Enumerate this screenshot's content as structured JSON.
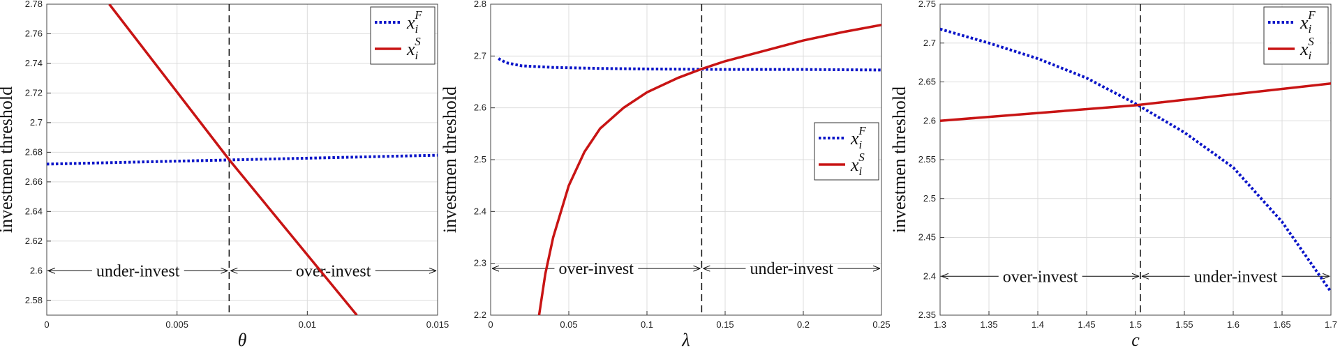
{
  "chart_data": [
    {
      "type": "line",
      "xlabel": "θ",
      "ylabel": "investmen threshold",
      "xlim": [
        0,
        0.015
      ],
      "xticks": [
        0,
        0.005,
        0.01,
        0.015
      ],
      "ylim": [
        2.57,
        2.78
      ],
      "yticks": [
        2.58,
        2.6,
        2.62,
        2.64,
        2.66,
        2.68,
        2.7,
        2.72,
        2.74,
        2.76,
        2.78
      ],
      "grid": true,
      "legend": "upper right",
      "vline": 0.007,
      "series": [
        {
          "name": "x",
          "subscript": "i",
          "superscript": "F",
          "color": "#0a14c8",
          "style": "dotted",
          "x": [
            0,
            0.015
          ],
          "values": [
            2.672,
            2.678
          ]
        },
        {
          "name": "x",
          "subscript": "i",
          "superscript": "S",
          "color": "#c81414",
          "style": "solid",
          "x": [
            0.0024,
            0.007,
            0.0119
          ],
          "values": [
            2.78,
            2.675,
            2.57
          ]
        }
      ],
      "annotation_y": 2.6,
      "annotations": [
        {
          "text": "under-invest",
          "side": "left"
        },
        {
          "text": "over-invest",
          "side": "right"
        }
      ]
    },
    {
      "type": "line",
      "xlabel": "λ",
      "ylabel": "investmen threshold",
      "xlim": [
        0,
        0.25
      ],
      "xticks": [
        0,
        0.05,
        0.1,
        0.15,
        0.2,
        0.25
      ],
      "ylim": [
        2.2,
        2.8
      ],
      "yticks": [
        2.2,
        2.3,
        2.4,
        2.5,
        2.6,
        2.7,
        2.8
      ],
      "grid": true,
      "legend": "right",
      "vline": 0.135,
      "series": [
        {
          "name": "x",
          "subscript": "i",
          "superscript": "F",
          "color": "#0a14c8",
          "style": "dotted",
          "x": [
            0.005,
            0.01,
            0.02,
            0.04,
            0.07,
            0.1,
            0.15,
            0.2,
            0.25
          ],
          "values": [
            2.695,
            2.687,
            2.681,
            2.678,
            2.676,
            2.675,
            2.674,
            2.674,
            2.673
          ]
        },
        {
          "name": "x",
          "subscript": "i",
          "superscript": "S",
          "color": "#c81414",
          "style": "solid",
          "x": [
            0.031,
            0.035,
            0.04,
            0.05,
            0.06,
            0.07,
            0.085,
            0.1,
            0.12,
            0.135,
            0.15,
            0.175,
            0.2,
            0.225,
            0.25
          ],
          "values": [
            2.2,
            2.28,
            2.35,
            2.45,
            2.515,
            2.56,
            2.6,
            2.63,
            2.658,
            2.675,
            2.69,
            2.71,
            2.73,
            2.746,
            2.76
          ]
        }
      ],
      "annotation_y": 2.29,
      "annotations": [
        {
          "text": "over-invest",
          "side": "left"
        },
        {
          "text": "under-invest",
          "side": "right"
        }
      ]
    },
    {
      "type": "line",
      "xlabel": "c",
      "ylabel": "investmen threshold",
      "xlim": [
        1.3,
        1.7
      ],
      "xticks": [
        1.3,
        1.35,
        1.4,
        1.45,
        1.5,
        1.55,
        1.6,
        1.65,
        1.7
      ],
      "ylim": [
        2.35,
        2.75
      ],
      "yticks": [
        2.35,
        2.4,
        2.45,
        2.5,
        2.55,
        2.6,
        2.65,
        2.7,
        2.75
      ],
      "grid": true,
      "legend": "upper right",
      "vline": 1.505,
      "series": [
        {
          "name": "x",
          "subscript": "i",
          "superscript": "F",
          "color": "#0a14c8",
          "style": "dotted",
          "x": [
            1.3,
            1.35,
            1.4,
            1.45,
            1.5,
            1.55,
            1.6,
            1.65,
            1.7
          ],
          "values": [
            2.718,
            2.7,
            2.68,
            2.655,
            2.622,
            2.585,
            2.54,
            2.47,
            2.38
          ]
        },
        {
          "name": "x",
          "subscript": "i",
          "superscript": "S",
          "color": "#c81414",
          "style": "solid",
          "x": [
            1.3,
            1.5,
            1.7
          ],
          "values": [
            2.6,
            2.62,
            2.648
          ]
        }
      ],
      "annotation_y": 2.4,
      "annotations": [
        {
          "text": "over-invest",
          "side": "left"
        },
        {
          "text": "under-invest",
          "side": "right"
        }
      ]
    }
  ]
}
